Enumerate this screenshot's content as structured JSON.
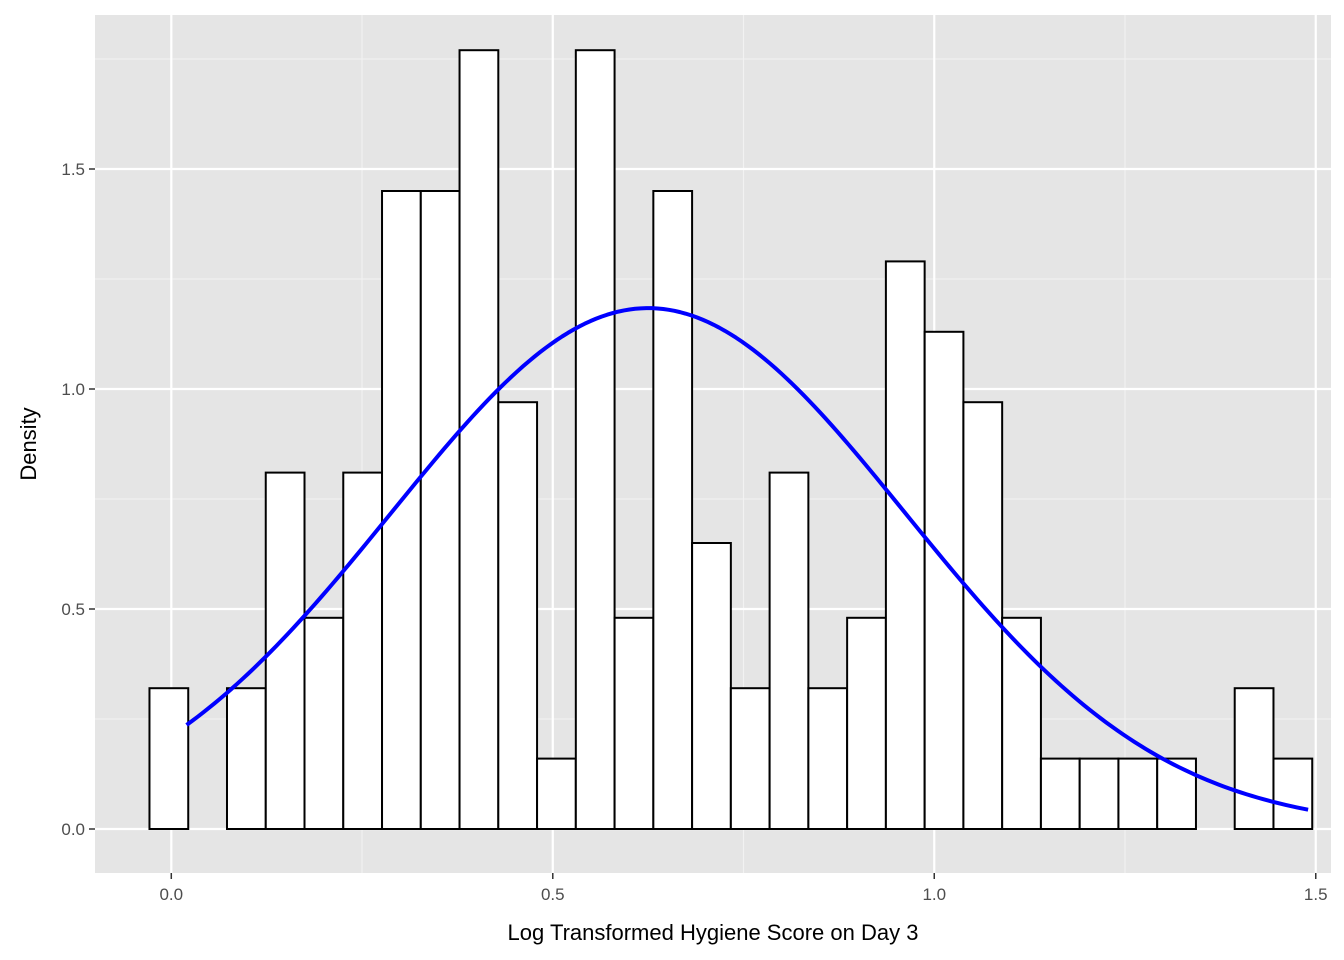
{
  "chart_data": {
    "type": "bar",
    "title": "",
    "xlabel": "Log Transformed Hygiene Score on Day 3",
    "ylabel": "Density",
    "xlim": [
      -0.1,
      1.52
    ],
    "ylim": [
      -0.1,
      1.85
    ],
    "xticks": [
      {
        "value": 0.0,
        "label": "0.0"
      },
      {
        "value": 0.5,
        "label": "0.5"
      },
      {
        "value": 1.0,
        "label": "1.0"
      },
      {
        "value": 1.5,
        "label": "1.5"
      }
    ],
    "yticks": [
      {
        "value": 0.0,
        "label": "0.0"
      },
      {
        "value": 0.5,
        "label": "0.5"
      },
      {
        "value": 1.0,
        "label": "1.0"
      },
      {
        "value": 1.5,
        "label": "1.5"
      }
    ],
    "grid": true,
    "panel_background": "#e5e5e5",
    "bar_fill": "#ffffff",
    "bar_outline": "#000000",
    "curve_color": "#0000ff",
    "bin_width": 0.0508,
    "bins": [
      {
        "start": -0.0286,
        "end": 0.0222,
        "density": 0.32
      },
      {
        "start": 0.0222,
        "end": 0.073,
        "density": 0.0
      },
      {
        "start": 0.073,
        "end": 0.1238,
        "density": 0.32
      },
      {
        "start": 0.1238,
        "end": 0.1746,
        "density": 0.81
      },
      {
        "start": 0.1746,
        "end": 0.2254,
        "density": 0.48
      },
      {
        "start": 0.2254,
        "end": 0.2762,
        "density": 0.81
      },
      {
        "start": 0.2762,
        "end": 0.327,
        "density": 1.45
      },
      {
        "start": 0.327,
        "end": 0.3778,
        "density": 1.45
      },
      {
        "start": 0.3778,
        "end": 0.4286,
        "density": 1.77
      },
      {
        "start": 0.4286,
        "end": 0.4794,
        "density": 0.97
      },
      {
        "start": 0.4794,
        "end": 0.5302,
        "density": 0.16
      },
      {
        "start": 0.5302,
        "end": 0.581,
        "density": 1.77
      },
      {
        "start": 0.581,
        "end": 0.6318,
        "density": 0.48
      },
      {
        "start": 0.6318,
        "end": 0.6826,
        "density": 1.45
      },
      {
        "start": 0.6826,
        "end": 0.7334,
        "density": 0.65
      },
      {
        "start": 0.7334,
        "end": 0.7842,
        "density": 0.32
      },
      {
        "start": 0.7842,
        "end": 0.835,
        "density": 0.81
      },
      {
        "start": 0.835,
        "end": 0.8858,
        "density": 0.32
      },
      {
        "start": 0.8858,
        "end": 0.9366,
        "density": 0.48
      },
      {
        "start": 0.9366,
        "end": 0.9874,
        "density": 1.29
      },
      {
        "start": 0.9874,
        "end": 1.0382,
        "density": 1.13
      },
      {
        "start": 1.0382,
        "end": 1.089,
        "density": 0.97
      },
      {
        "start": 1.089,
        "end": 1.1398,
        "density": 0.48
      },
      {
        "start": 1.1398,
        "end": 1.1906,
        "density": 0.16
      },
      {
        "start": 1.1906,
        "end": 1.2414,
        "density": 0.16
      },
      {
        "start": 1.2414,
        "end": 1.2922,
        "density": 0.16
      },
      {
        "start": 1.2922,
        "end": 1.343,
        "density": 0.16
      },
      {
        "start": 1.343,
        "end": 1.3938,
        "density": 0.0
      },
      {
        "start": 1.3938,
        "end": 1.4446,
        "density": 0.32
      },
      {
        "start": 1.4446,
        "end": 1.4954,
        "density": 0.16
      }
    ],
    "normal_curve": {
      "mean": 0.625,
      "sd": 0.337,
      "x_range": [
        0.02,
        1.49
      ]
    }
  }
}
